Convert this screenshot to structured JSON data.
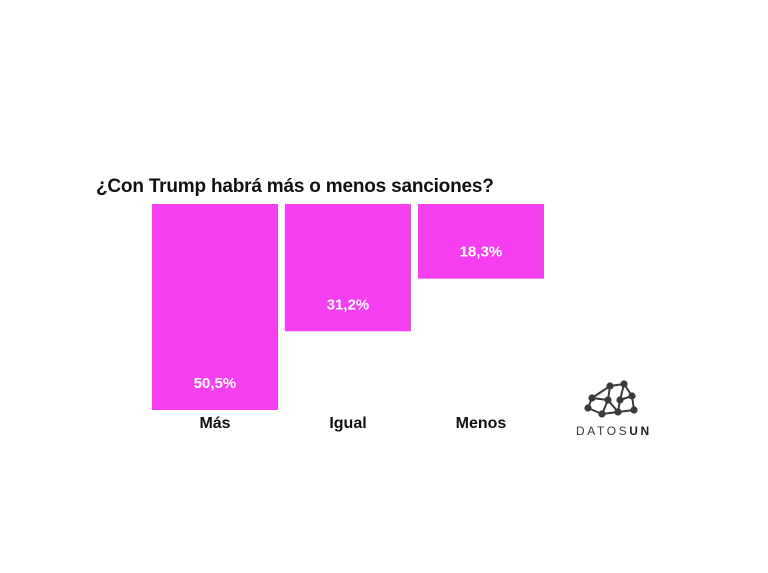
{
  "chart_data": {
    "type": "bar",
    "title": "¿Con Trump habrá más o menos sanciones?",
    "categories": [
      "Más",
      "Igual",
      "Menos"
    ],
    "values": [
      50.5,
      31.2,
      18.3
    ],
    "value_labels": [
      "50,5%",
      "31,2%",
      "18,3%"
    ],
    "unit": "%",
    "ylim": [
      0,
      50.5
    ],
    "orientation": "vertical-hanging-from-top",
    "grid": false,
    "legend": "none",
    "bar_color": "#F53FF0"
  },
  "logo": {
    "text_light": "DATOS",
    "text_strong": "UN",
    "icon": "network-nodes-icon"
  }
}
